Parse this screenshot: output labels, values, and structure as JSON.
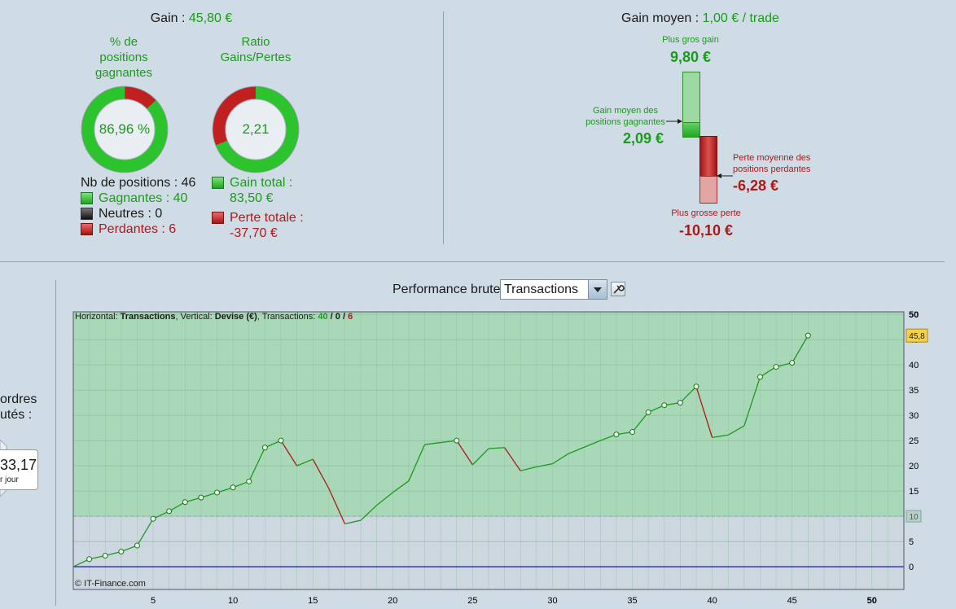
{
  "summary": {
    "gain_label": "Gain : ",
    "gain_value": "45,80 €",
    "pct_title": "% de\npositions\ngagnantes",
    "pct_value": "86,96 %",
    "pct_fraction": 0.8696,
    "ratio_title": "Ratio\nGains/Pertes",
    "ratio_value": "2,21",
    "ratio_fraction": 0.6889,
    "nb_positions": "Nb de positions : 46",
    "gagnantes": "Gagnantes : 40",
    "neutres": "Neutres : 0",
    "perdantes": "Perdantes : 6",
    "gain_total_label": "Gain total :",
    "gain_total_value": "83,50 €",
    "perte_totale_label": "Perte totale :",
    "perte_totale_value": "-37,70 €"
  },
  "gain_moyen": {
    "label": "Gain moyen : ",
    "value": "1,00 € / trade",
    "plus_gros_gain_label": "Plus gros gain",
    "plus_gros_gain_value": "9,80 €",
    "gain_moyen_gagnantes_label": "Gain moyen des\npositions gagnantes",
    "gain_moyen_gagnantes_value": "2,09 €",
    "perte_moyenne_label": "Perte moyenne des\npositions perdantes",
    "perte_moyenne_value": "-6,28 €",
    "plus_grosse_perte_label": "Plus grosse perte",
    "plus_grosse_perte_value": "-10,10 €"
  },
  "left_panel": {
    "ordres_line1": "ordres",
    "ordres_line2": "utés :",
    "perf_value": "33,17",
    "perf_unit": "r jour"
  },
  "controls": {
    "performance_label": "Performance brute",
    "selected_option": "Transactions"
  },
  "chart_header": {
    "horizontal_label": "Horizontal: ",
    "horizontal_value": "Transactions",
    "vertical_label": ", Vertical: ",
    "vertical_value": "Devise (€)",
    "transactions_label": ", Transactions: ",
    "wins": "40",
    "sep": " / ",
    "neutral": "0",
    "losses": "6",
    "copyright": "© IT-Finance.com"
  },
  "colors": {
    "green": "#1c9a1c",
    "red": "#b01818",
    "zone_green": "#a9d8b8",
    "zone_grey": "#ccd7e0",
    "baseline": "#2a2ab0"
  },
  "chart_data": {
    "type": "line",
    "xlabel": "Transactions",
    "ylabel": "Devise (€)",
    "xlim": [
      0,
      52
    ],
    "ylim": [
      -4.5,
      50.5
    ],
    "x_ticks": [
      5,
      10,
      15,
      20,
      25,
      30,
      35,
      40,
      45,
      50
    ],
    "y_ticks": [
      0,
      5,
      10,
      15,
      20,
      25,
      30,
      35,
      40,
      45,
      50
    ],
    "threshold": 10,
    "threshold_label": "10",
    "last_value_label": "45,8",
    "x": [
      0,
      1,
      2,
      3,
      4,
      5,
      6,
      7,
      8,
      9,
      10,
      11,
      12,
      13,
      14,
      15,
      16,
      17,
      18,
      19,
      20,
      21,
      22,
      23,
      24,
      25,
      26,
      27,
      28,
      29,
      30,
      31,
      32,
      33,
      34,
      35,
      36,
      37,
      38,
      39,
      40,
      41,
      42,
      43,
      44,
      45,
      46
    ],
    "y": [
      0,
      1.5,
      2.2,
      3,
      4.2,
      9.5,
      11,
      12.8,
      13.7,
      14.7,
      15.7,
      16.9,
      23.6,
      25,
      20,
      21.3,
      15.5,
      8.5,
      9.2,
      12.2,
      14.7,
      17,
      24.2,
      24.6,
      25,
      20.2,
      23.4,
      23.6,
      19,
      19.8,
      20.4,
      22.4,
      23.7,
      25,
      26.2,
      26.7,
      30.6,
      32,
      32.5,
      35.7,
      25.6,
      26.1,
      27.9,
      37.6,
      39.6,
      40.4,
      45.8
    ],
    "markers": [
      1,
      2,
      3,
      4,
      5,
      6,
      7,
      8,
      9,
      10,
      11,
      12,
      13,
      24,
      34,
      35,
      36,
      37,
      38,
      39,
      43,
      44,
      45,
      46
    ]
  }
}
